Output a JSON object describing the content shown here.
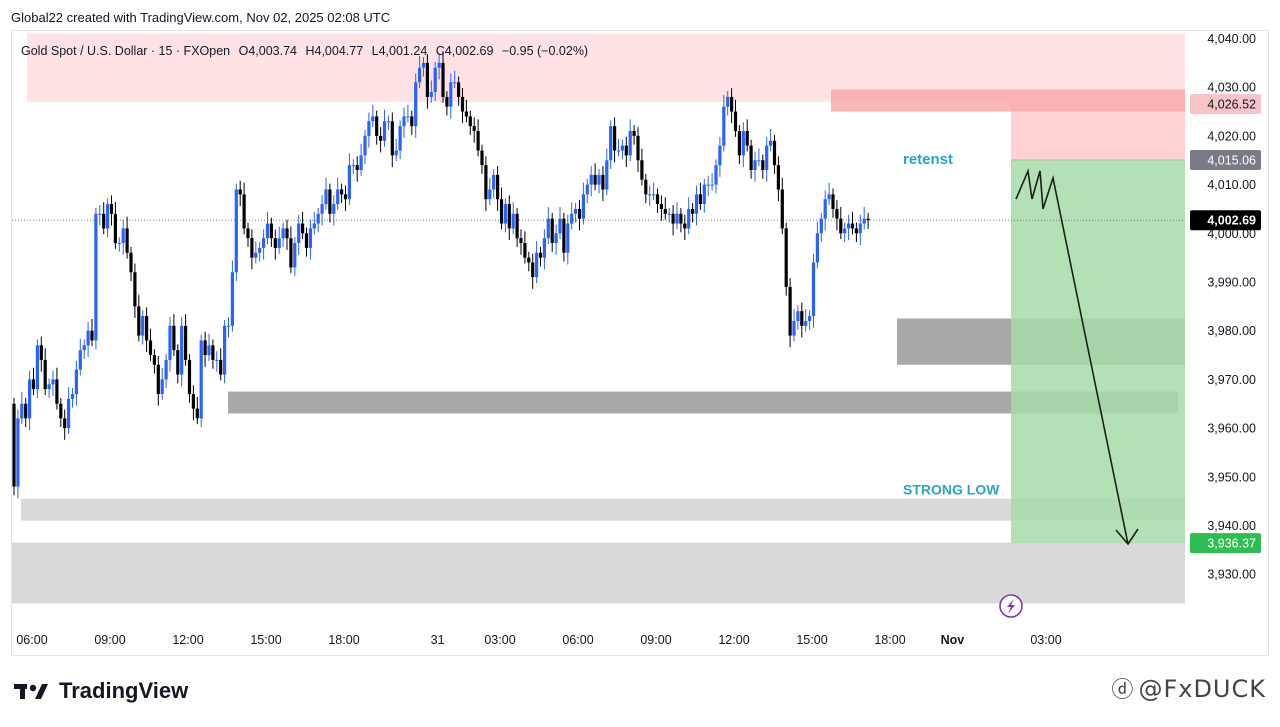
{
  "header": {
    "credit": "Global22 created with TradingView.com, Nov 02, 2025 02:08 UTC"
  },
  "legend": {
    "symbol": "Gold Spot / U.S. Dollar · 15 · FXOpen",
    "open": "O4,003.74",
    "high": "H4,004.77",
    "low": "L4,001.24",
    "close": "C4,002.69",
    "change": "−0.95 (−0.02%)"
  },
  "footer": {
    "logo_text": "TradingView",
    "watermark": "@FxDUCK"
  },
  "colors": {
    "up": "#2962ff",
    "down": "#000000",
    "bg": "#ffffff",
    "supply_zone": "#ffe2e4",
    "stop_zone": "#ffc9cc",
    "stop_band": "#f9a9ad",
    "target_zone": "#a7dba8",
    "demand_dark": "#a9a9a9",
    "demand_light": "#d9d9d9",
    "annotation": "#27a6c2",
    "target_label": "#2ebd55",
    "price_label": "#000000",
    "grey_label": "#787b86",
    "stop_label": "#f7c5c8"
  },
  "chart_data": {
    "type": "candlestick",
    "title": "Gold Spot / U.S. Dollar · 15 · FXOpen",
    "y_axis": {
      "min": 3925,
      "max": 4042,
      "ticks": [
        4040,
        4030,
        4020,
        4010,
        4000,
        3990,
        3980,
        3970,
        3960,
        3950,
        3940,
        3930
      ],
      "tick_labels": [
        "4,040.00",
        "4,030.00",
        "4,020.00",
        "4,010.00",
        "4,000.00",
        "3,990.00",
        "3,980.00",
        "3,970.00",
        "3,960.00",
        "3,950.00",
        "3,940.00",
        "3,930.00"
      ]
    },
    "x_axis": {
      "labels": [
        "06:00",
        "09:00",
        "12:00",
        "15:00",
        "18:00",
        "31",
        "03:00",
        "06:00",
        "09:00",
        "12:00",
        "15:00",
        "18:00",
        "Nov",
        "03:00"
      ],
      "label_bar_index": [
        0,
        20,
        40,
        60,
        80,
        104,
        120,
        140,
        160,
        180,
        200,
        220,
        236,
        260
      ],
      "bold_labels": [
        "Nov"
      ]
    },
    "ohlc_start_value": 3965,
    "ohlc_closes": [
      3948,
      3962,
      3965,
      3962,
      3970,
      3968,
      3977,
      3974,
      3968,
      3969,
      3970,
      3965,
      3962,
      3960,
      3966,
      3967,
      3972,
      3976,
      3977,
      3980,
      3978,
      4004,
      4004,
      4001,
      4006,
      4004,
      3998,
      3998,
      4001,
      3996,
      3992,
      3985,
      3979,
      3983,
      3978,
      3975,
      3973,
      3967,
      3970,
      3974,
      3981,
      3976,
      3971,
      3981,
      3974,
      3967,
      3964,
      3962,
      3978,
      3975,
      3977,
      3974,
      3974,
      3971,
      3981,
      3981,
      3992,
      4009,
      4008,
      4001,
      3999,
      3995,
      3996,
      3997,
      3999,
      4002,
      3999,
      3997,
      3999,
      4001,
      3999,
      3993,
      3998,
      4002,
      4000,
      3997,
      4001,
      4002,
      4004,
      4006,
      4009,
      4004,
      4006,
      4009,
      4008,
      4007,
      4014,
      4014,
      4013,
      4016,
      4020,
      4023,
      4024,
      4020,
      4019,
      4023,
      4023,
      4016,
      4017,
      4022,
      4024,
      4024,
      4022,
      4031,
      4034,
      4035,
      4028,
      4029,
      4034,
      4035,
      4028,
      4026,
      4031,
      4031,
      4028,
      4025,
      4024,
      4022,
      4021,
      4017,
      4014,
      4007,
      4009,
      4012,
      4007,
      4002,
      4006,
      4001,
      4004,
      3999,
      3998,
      3995,
      3994,
      3991,
      3996,
      3995,
      3999,
      4003,
      3998,
      4000,
      4003,
      3996,
      4002,
      4004,
      4005,
      4003,
      4008,
      4010,
      4012,
      4010,
      4012,
      4009,
      4015,
      4022,
      4017,
      4017,
      4018,
      4016,
      4021,
      4020,
      4015,
      4011,
      4008,
      4008,
      4008,
      4006,
      4005,
      4004,
      4004,
      4002,
      4004,
      4002,
      4001,
      4005,
      4004,
      4008,
      4006,
      4010,
      4010,
      4010,
      4014,
      4018,
      4026,
      4028,
      4025,
      4021,
      4016,
      4021,
      4018,
      4013,
      4015,
      4015,
      4013,
      4018,
      4019,
      4014,
      4009,
      4001,
      3989,
      3979,
      3982,
      3984,
      3981,
      3982,
      3983,
      3994,
      4000,
      4003,
      4007,
      4008,
      4005,
      4003,
      4000,
      4001,
      4002,
      4001,
      4000,
      4002,
      4003,
      4002.69
    ],
    "overlays": {
      "supply_zone": {
        "top": 4041,
        "bottom": 4027
      },
      "short_entry": 4015.06,
      "short_stop": 4026.52,
      "stop_band": {
        "top": 4029.5,
        "bottom": 4025
      },
      "target": 3936.37,
      "demand_zone_1": {
        "top": 3982.5,
        "bottom": 3973
      },
      "demand_zone_2": {
        "top": 3967.5,
        "bottom": 3963
      },
      "strong_low_zone": {
        "top": 3945.5,
        "bottom": 3941
      },
      "bottom_zone": {
        "top": 3936.5,
        "bottom": 3924
      },
      "current_price": 4002.69
    },
    "price_labels": [
      {
        "value": 4026.52,
        "text": "4,026.52",
        "style": "stop"
      },
      {
        "value": 4015.06,
        "text": "4,015.06",
        "style": "grey"
      },
      {
        "value": 4002.69,
        "text": "4,002.69",
        "style": "current"
      },
      {
        "value": 3936.37,
        "text": "3,936.37",
        "style": "target"
      }
    ],
    "annotations": [
      {
        "text": "retenst",
        "near_price": 4015.5
      },
      {
        "text": "STRONG LOW",
        "near_price": 3948
      }
    ]
  }
}
